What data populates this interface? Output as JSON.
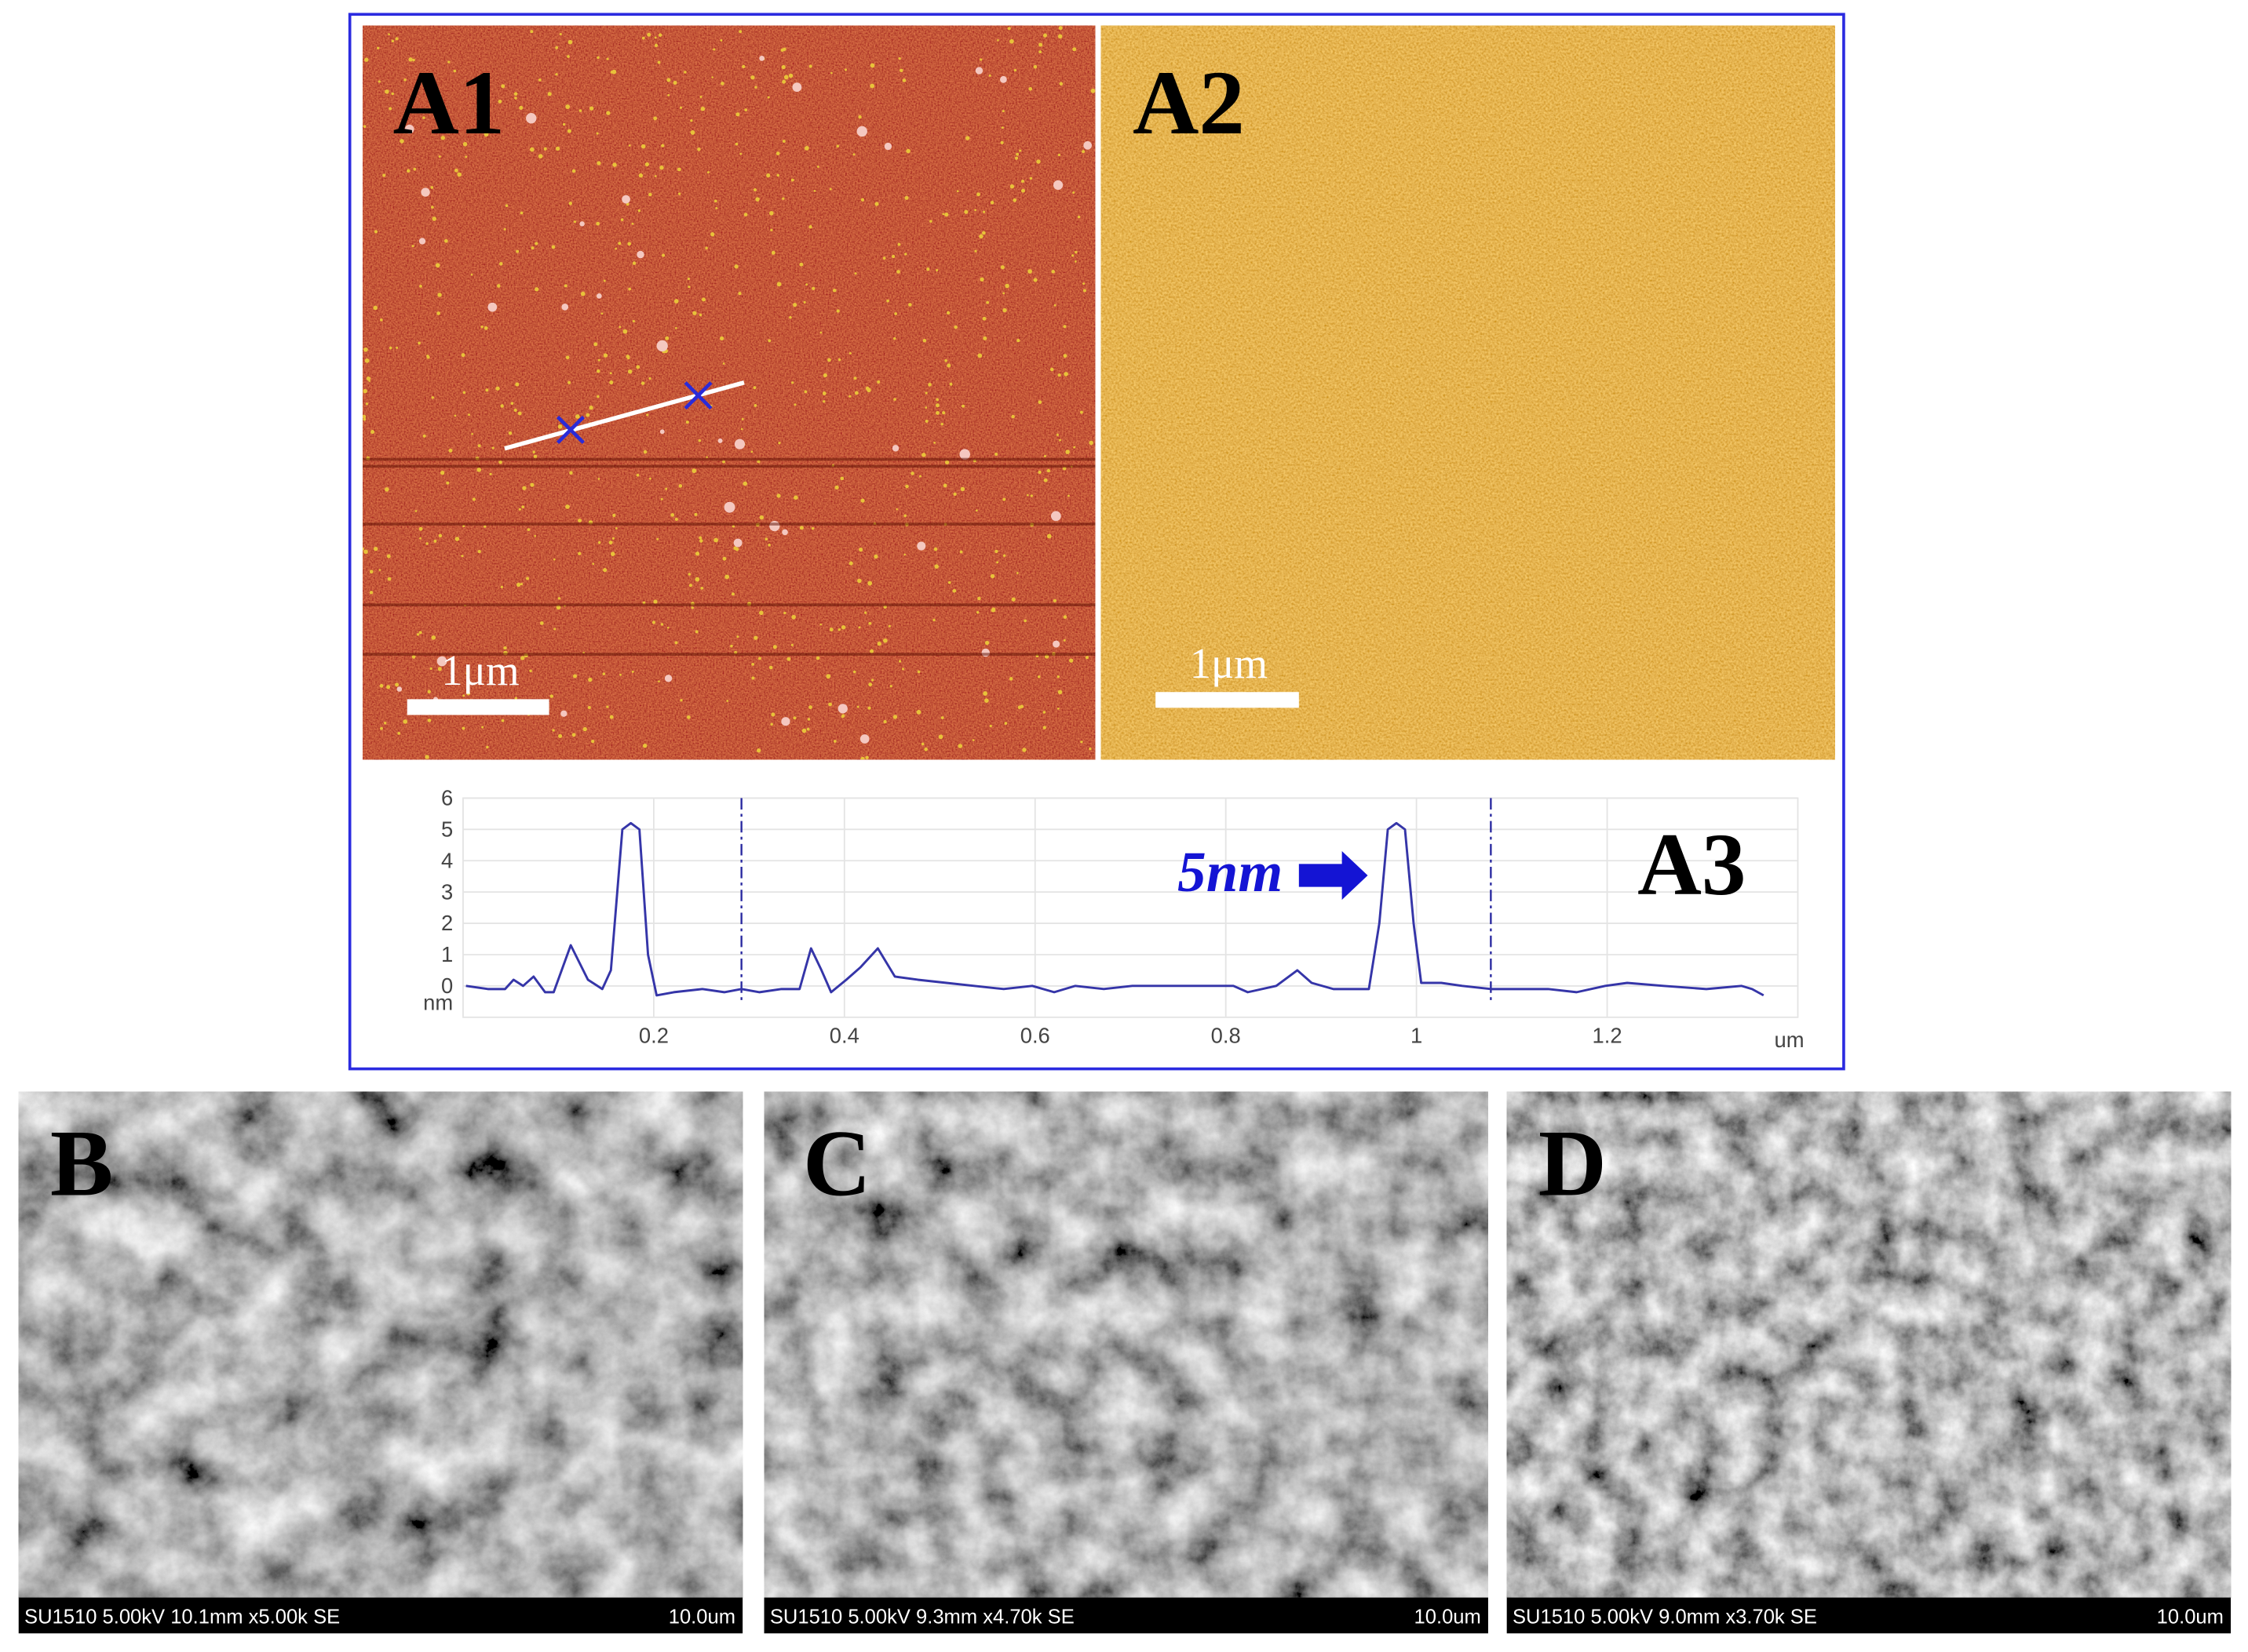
{
  "panels": {
    "A1": {
      "label": "A1",
      "scale_bar": "1μm"
    },
    "A2": {
      "label": "A2",
      "scale_bar": "1μm"
    },
    "A3": {
      "label": "A3"
    },
    "B": {
      "label": "B",
      "info": "SU1510 5.00kV 10.1mm x5.00k SE",
      "scale": "10.0um"
    },
    "C": {
      "label": "C",
      "info": "SU1510 5.00kV 9.3mm x4.70k SE",
      "scale": "10.0um"
    },
    "D": {
      "label": "D",
      "info": "SU1510 5.00kV 9.0mm x3.70k SE",
      "scale": "10.0um"
    }
  },
  "chart_data": {
    "type": "line",
    "x": [
      0.003,
      0.026,
      0.044,
      0.053,
      0.063,
      0.074,
      0.086,
      0.095,
      0.113,
      0.131,
      0.146,
      0.155,
      0.167,
      0.176,
      0.185,
      0.194,
      0.203,
      0.221,
      0.251,
      0.274,
      0.292,
      0.311,
      0.334,
      0.353,
      0.365,
      0.376,
      0.386,
      0.402,
      0.417,
      0.435,
      0.453,
      0.477,
      0.507,
      0.536,
      0.567,
      0.597,
      0.62,
      0.642,
      0.672,
      0.702,
      0.747,
      0.808,
      0.823,
      0.853,
      0.875,
      0.89,
      0.913,
      0.95,
      0.961,
      0.97,
      0.979,
      0.988,
      0.997,
      1.005,
      1.026,
      1.048,
      1.078,
      1.108,
      1.138,
      1.168,
      1.198,
      1.221,
      1.259,
      1.304,
      1.341,
      1.352,
      1.364
    ],
    "values": [
      0,
      -0.1,
      -0.1,
      0.2,
      0,
      0.3,
      -0.2,
      -0.2,
      1.3,
      0.2,
      -0.1,
      0.5,
      5.0,
      5.2,
      5.0,
      1.0,
      -0.3,
      -0.2,
      -0.1,
      -0.2,
      -0.1,
      -0.2,
      -0.1,
      -0.1,
      1.2,
      0.5,
      -0.2,
      0.2,
      0.6,
      1.2,
      0.3,
      0.2,
      0.1,
      0.0,
      -0.1,
      0.0,
      -0.2,
      0.0,
      -0.1,
      0.0,
      0.0,
      0.0,
      -0.2,
      0.0,
      0.5,
      0.1,
      -0.1,
      -0.1,
      2.0,
      5.0,
      5.2,
      5.0,
      2.0,
      0.1,
      0.1,
      0,
      -0.1,
      -0.1,
      -0.1,
      -0.2,
      0,
      0.1,
      0,
      -0.1,
      0,
      -0.1,
      -0.3
    ],
    "color": "#3535a8",
    "xlim": [
      0,
      1.4
    ],
    "ylim": [
      -1,
      6
    ],
    "xticks": [
      0.2,
      0.4,
      0.6,
      0.8,
      1,
      1.2
    ],
    "yticks": [
      0,
      1,
      2,
      3,
      4,
      5,
      6
    ],
    "x_label": "um",
    "y_label": "nm",
    "markers": [
      0.292,
      1.078
    ],
    "annotation": "5nm",
    "grid": true
  }
}
